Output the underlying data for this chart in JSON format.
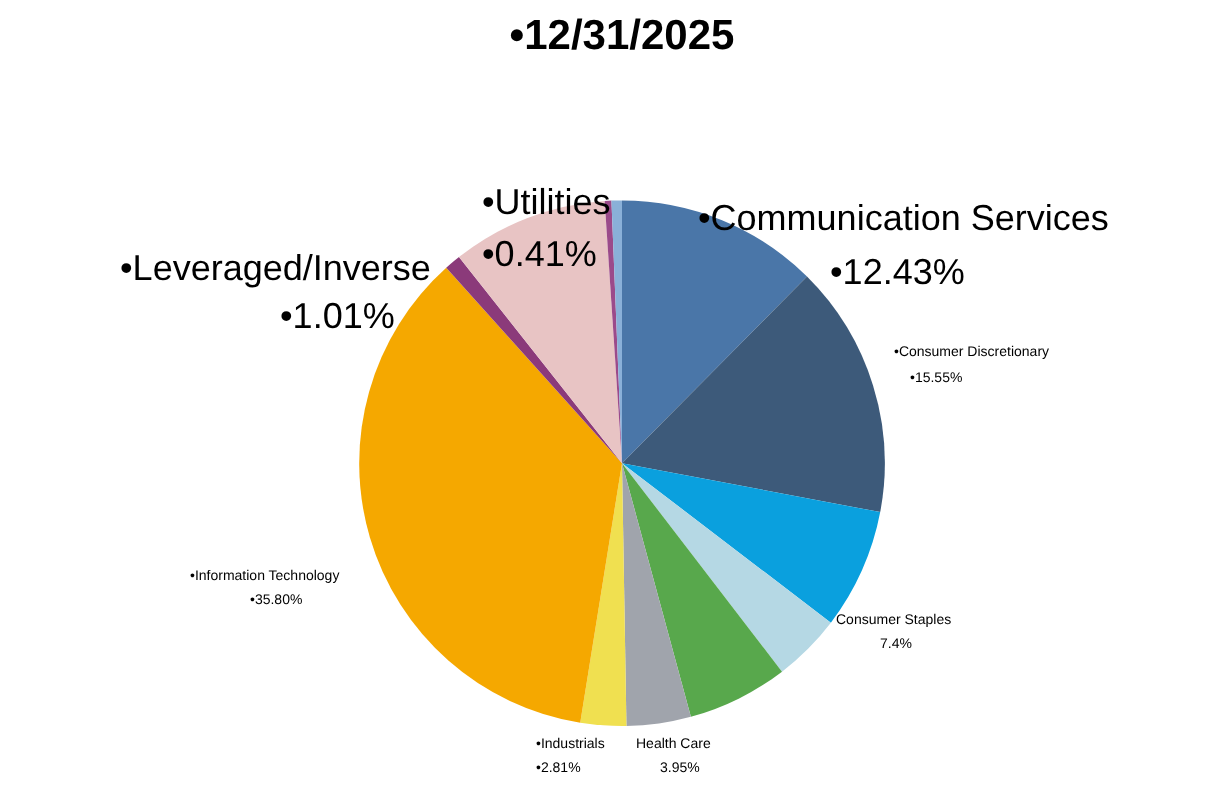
{
  "chart_data": {
    "type": "pie",
    "title": "•12/31/2025",
    "categories": [
      "•Communication Services",
      "•Consumer Discretionary",
      "Consumer Staples",
      null,
      null,
      "Health Care",
      "•Industrials",
      "•Information Technology",
      "•Leveraged/Inverse",
      null,
      "•Utilities",
      null
    ],
    "values": [
      12.43,
      15.55,
      7.4,
      4.2,
      6.2,
      3.95,
      2.81,
      35.8,
      1.01,
      9.6,
      0.41,
      0.64
    ],
    "value_labels": [
      "•12.43%",
      "•15.55%",
      "7.4%",
      null,
      null,
      "3.95%",
      "•2.81%",
      "•35.80%",
      "•1.01%",
      null,
      "•0.41%",
      null
    ],
    "colors": [
      "#4a76a8",
      "#3d5a7a",
      "#0aa0de",
      "#b5d8e4",
      "#58a84c",
      "#a0a4ac",
      "#f0e050",
      "#f5a800",
      "#8b3a7a",
      "#e8c4c4",
      "#9b4a8a",
      "#8ab0d8"
    ],
    "legend": false
  }
}
